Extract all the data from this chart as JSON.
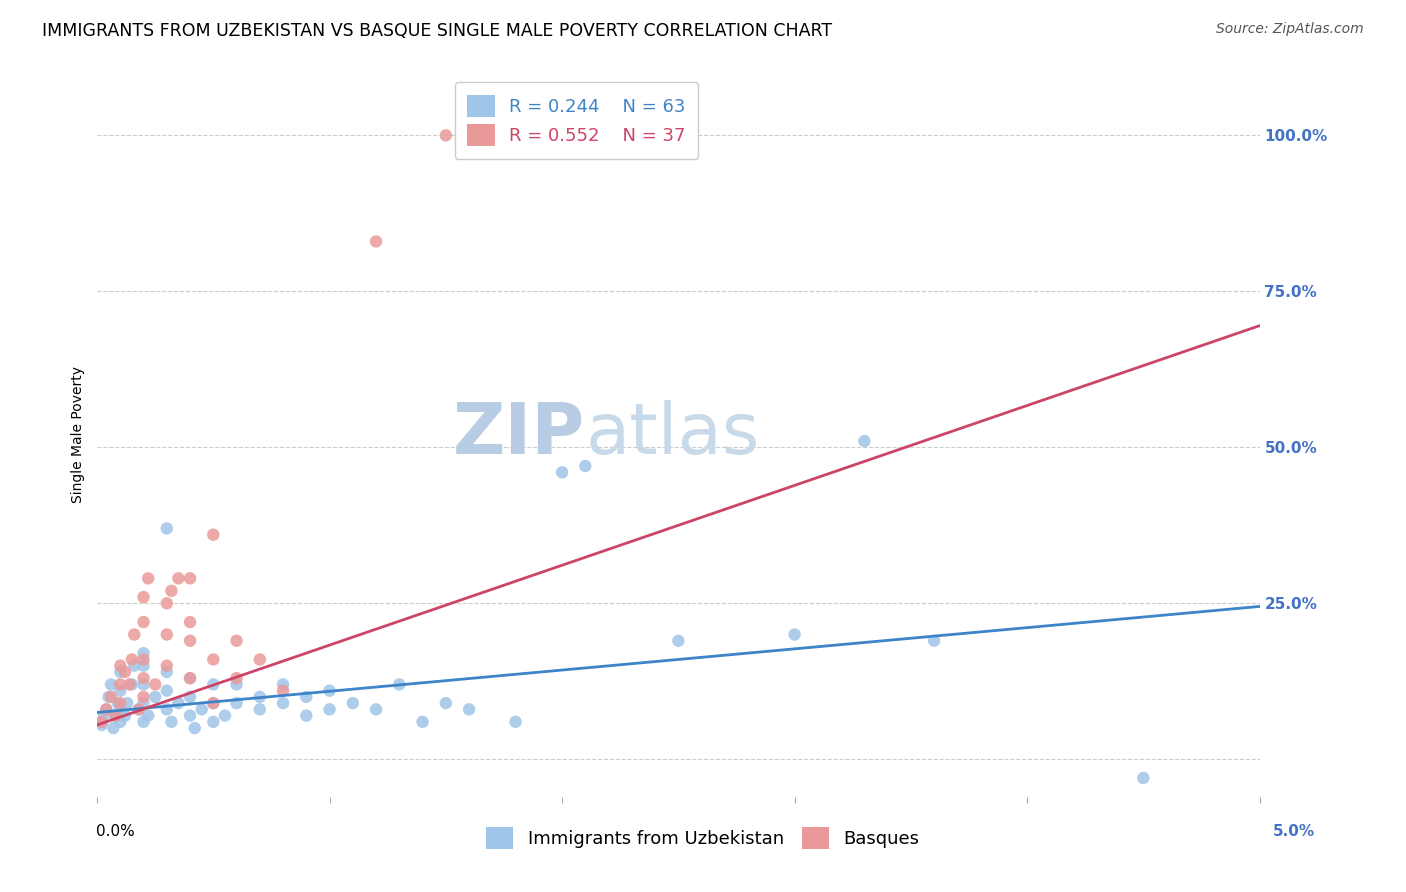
{
  "title": "IMMIGRANTS FROM UZBEKISTAN VS BASQUE SINGLE MALE POVERTY CORRELATION CHART",
  "source": "Source: ZipAtlas.com",
  "ylabel": "Single Male Poverty",
  "watermark": "ZIPatlas",
  "legend_r1": "R = 0.244",
  "legend_n1": "N = 63",
  "legend_r2": "R = 0.552",
  "legend_n2": "N = 37",
  "yticks": [
    0.0,
    0.25,
    0.5,
    0.75,
    1.0
  ],
  "ytick_labels": [
    "",
    "25.0%",
    "50.0%",
    "75.0%",
    "100.0%"
  ],
  "xlim": [
    0.0,
    0.05
  ],
  "ylim": [
    -0.06,
    1.1
  ],
  "blue_color": "#9fc5e8",
  "pink_color": "#ea9999",
  "blue_line_color": "#3d85c8",
  "pink_line_color": "#cc4466",
  "blue_scatter": [
    [
      0.0002,
      0.055
    ],
    [
      0.0003,
      0.07
    ],
    [
      0.0004,
      0.08
    ],
    [
      0.0005,
      0.1
    ],
    [
      0.0006,
      0.12
    ],
    [
      0.0007,
      0.05
    ],
    [
      0.0008,
      0.07
    ],
    [
      0.0009,
      0.09
    ],
    [
      0.001,
      0.06
    ],
    [
      0.001,
      0.08
    ],
    [
      0.001,
      0.11
    ],
    [
      0.001,
      0.14
    ],
    [
      0.0012,
      0.07
    ],
    [
      0.0013,
      0.09
    ],
    [
      0.0015,
      0.12
    ],
    [
      0.0016,
      0.15
    ],
    [
      0.0018,
      0.08
    ],
    [
      0.002,
      0.06
    ],
    [
      0.002,
      0.09
    ],
    [
      0.002,
      0.12
    ],
    [
      0.002,
      0.15
    ],
    [
      0.002,
      0.17
    ],
    [
      0.0022,
      0.07
    ],
    [
      0.0025,
      0.1
    ],
    [
      0.003,
      0.08
    ],
    [
      0.003,
      0.11
    ],
    [
      0.003,
      0.14
    ],
    [
      0.003,
      0.37
    ],
    [
      0.0032,
      0.06
    ],
    [
      0.0035,
      0.09
    ],
    [
      0.004,
      0.07
    ],
    [
      0.004,
      0.1
    ],
    [
      0.004,
      0.13
    ],
    [
      0.0042,
      0.05
    ],
    [
      0.0045,
      0.08
    ],
    [
      0.005,
      0.06
    ],
    [
      0.005,
      0.09
    ],
    [
      0.005,
      0.12
    ],
    [
      0.0055,
      0.07
    ],
    [
      0.006,
      0.09
    ],
    [
      0.006,
      0.12
    ],
    [
      0.007,
      0.08
    ],
    [
      0.007,
      0.1
    ],
    [
      0.008,
      0.09
    ],
    [
      0.008,
      0.12
    ],
    [
      0.009,
      0.07
    ],
    [
      0.009,
      0.1
    ],
    [
      0.01,
      0.08
    ],
    [
      0.01,
      0.11
    ],
    [
      0.011,
      0.09
    ],
    [
      0.012,
      0.08
    ],
    [
      0.013,
      0.12
    ],
    [
      0.014,
      0.06
    ],
    [
      0.015,
      0.09
    ],
    [
      0.016,
      0.08
    ],
    [
      0.018,
      0.06
    ],
    [
      0.02,
      0.46
    ],
    [
      0.021,
      0.47
    ],
    [
      0.025,
      0.19
    ],
    [
      0.03,
      0.2
    ],
    [
      0.033,
      0.51
    ],
    [
      0.036,
      0.19
    ],
    [
      0.045,
      -0.03
    ]
  ],
  "pink_scatter": [
    [
      0.0002,
      0.06
    ],
    [
      0.0004,
      0.08
    ],
    [
      0.0006,
      0.1
    ],
    [
      0.0008,
      0.07
    ],
    [
      0.001,
      0.09
    ],
    [
      0.001,
      0.12
    ],
    [
      0.001,
      0.15
    ],
    [
      0.0012,
      0.14
    ],
    [
      0.0014,
      0.12
    ],
    [
      0.0015,
      0.16
    ],
    [
      0.0016,
      0.2
    ],
    [
      0.0018,
      0.08
    ],
    [
      0.002,
      0.1
    ],
    [
      0.002,
      0.13
    ],
    [
      0.002,
      0.16
    ],
    [
      0.002,
      0.22
    ],
    [
      0.002,
      0.26
    ],
    [
      0.0022,
      0.29
    ],
    [
      0.0025,
      0.12
    ],
    [
      0.003,
      0.15
    ],
    [
      0.003,
      0.2
    ],
    [
      0.003,
      0.25
    ],
    [
      0.0032,
      0.27
    ],
    [
      0.0035,
      0.29
    ],
    [
      0.004,
      0.13
    ],
    [
      0.004,
      0.19
    ],
    [
      0.004,
      0.22
    ],
    [
      0.004,
      0.29
    ],
    [
      0.005,
      0.09
    ],
    [
      0.005,
      0.16
    ],
    [
      0.005,
      0.36
    ],
    [
      0.006,
      0.13
    ],
    [
      0.006,
      0.19
    ],
    [
      0.007,
      0.16
    ],
    [
      0.008,
      0.11
    ],
    [
      0.015,
      1.0
    ],
    [
      0.012,
      0.83
    ]
  ],
  "blue_trendline": [
    [
      0.0,
      0.075
    ],
    [
      0.05,
      0.245
    ]
  ],
  "pink_trendline": [
    [
      0.0,
      0.055
    ],
    [
      0.05,
      0.695
    ]
  ],
  "background_color": "#ffffff",
  "grid_color": "#cccccc",
  "title_fontsize": 12.5,
  "axis_label_fontsize": 10,
  "tick_label_fontsize": 11,
  "legend_fontsize": 13,
  "watermark_fontsize": 52,
  "watermark_color": "#c8d8ec",
  "source_fontsize": 10
}
